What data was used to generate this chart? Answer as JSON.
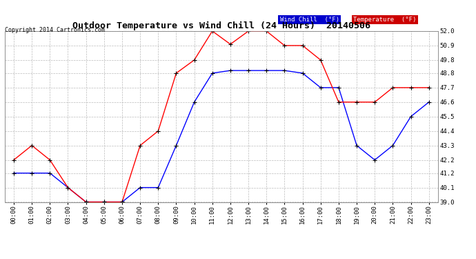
{
  "title": "Outdoor Temperature vs Wind Chill (24 Hours)  20140506",
  "copyright": "Copyright 2014 Cartronics.com",
  "hours": [
    "00:00",
    "01:00",
    "02:00",
    "03:00",
    "04:00",
    "05:00",
    "06:00",
    "07:00",
    "08:00",
    "09:00",
    "10:00",
    "11:00",
    "12:00",
    "13:00",
    "14:00",
    "15:00",
    "16:00",
    "17:00",
    "18:00",
    "19:00",
    "20:00",
    "21:00",
    "22:00",
    "23:00"
  ],
  "wind_chill": [
    41.2,
    41.2,
    41.2,
    40.1,
    39.0,
    39.0,
    39.0,
    40.1,
    40.1,
    43.3,
    46.6,
    48.8,
    49.0,
    49.0,
    49.0,
    49.0,
    48.8,
    47.7,
    47.7,
    43.3,
    42.2,
    43.3,
    45.5,
    46.6
  ],
  "temperature": [
    42.2,
    43.3,
    42.2,
    40.1,
    39.0,
    39.0,
    39.0,
    43.3,
    44.4,
    48.8,
    49.8,
    52.0,
    51.0,
    52.0,
    52.0,
    50.9,
    50.9,
    49.8,
    46.6,
    46.6,
    46.6,
    47.7,
    47.7,
    47.7
  ],
  "wind_chill_color": "#0000ff",
  "temperature_color": "#ff0000",
  "ylim": [
    39.0,
    52.0
  ],
  "yticks": [
    39.0,
    40.1,
    41.2,
    42.2,
    43.3,
    44.4,
    45.5,
    46.6,
    47.7,
    48.8,
    49.8,
    50.9,
    52.0
  ],
  "bg_color": "#ffffff",
  "grid_color": "#bbbbbb",
  "legend_wind_chill_bg": "#0000cc",
  "legend_temp_bg": "#cc0000",
  "legend_text_color": "#ffffff"
}
